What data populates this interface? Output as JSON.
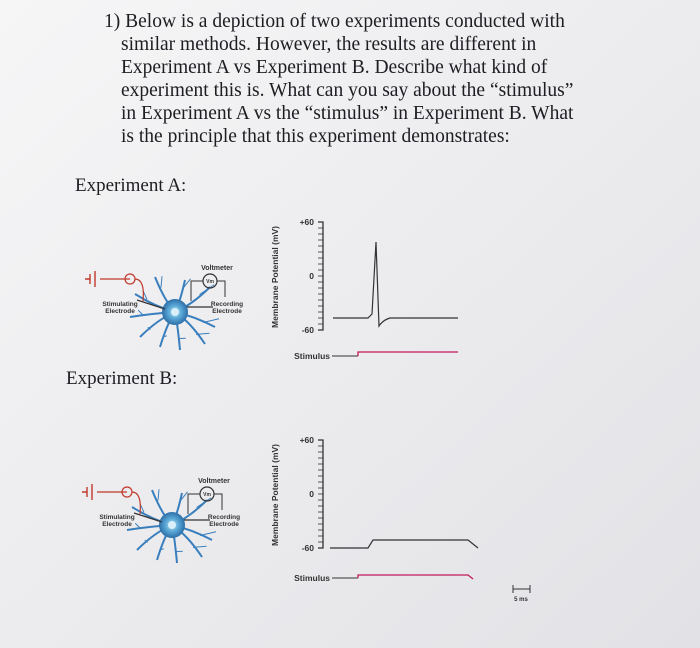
{
  "question": {
    "lines": [
      "1) Below is a depiction of two experiments conducted with",
      "similar methods. However, the results are different in",
      "Experiment A vs Experiment B. Describe what kind of",
      "experiment this is. What can you say about the “stimulus”",
      "in Experiment A vs the “stimulus” in Experiment B. What",
      "is the principle that this experiment demonstrates:"
    ]
  },
  "experiments": [
    {
      "heading": "Experiment A:",
      "neuron": {
        "voltmeter": "Voltmeter",
        "meter": "Vm",
        "stimulating": [
          "Stimulating",
          "Electrode"
        ],
        "recording": [
          "Recording",
          "Electrode"
        ]
      },
      "plot": {
        "y_label": "Membrane Potential (mV)",
        "ticks": [
          "+60",
          "0",
          "-60"
        ],
        "stimulus": "Stimulus"
      }
    },
    {
      "heading": "Experiment B:",
      "neuron": {
        "voltmeter": "Voltmeter",
        "meter": "Vm",
        "stimulating": [
          "Stimulating",
          "Electrode"
        ],
        "recording": [
          "Recording",
          "Electrode"
        ]
      },
      "plot": {
        "y_label": "Membrane Potential (mV)",
        "ticks": [
          "+60",
          "0",
          "-60"
        ],
        "stimulus": "Stimulus"
      }
    }
  ],
  "scale_bar": "5 ms"
}
